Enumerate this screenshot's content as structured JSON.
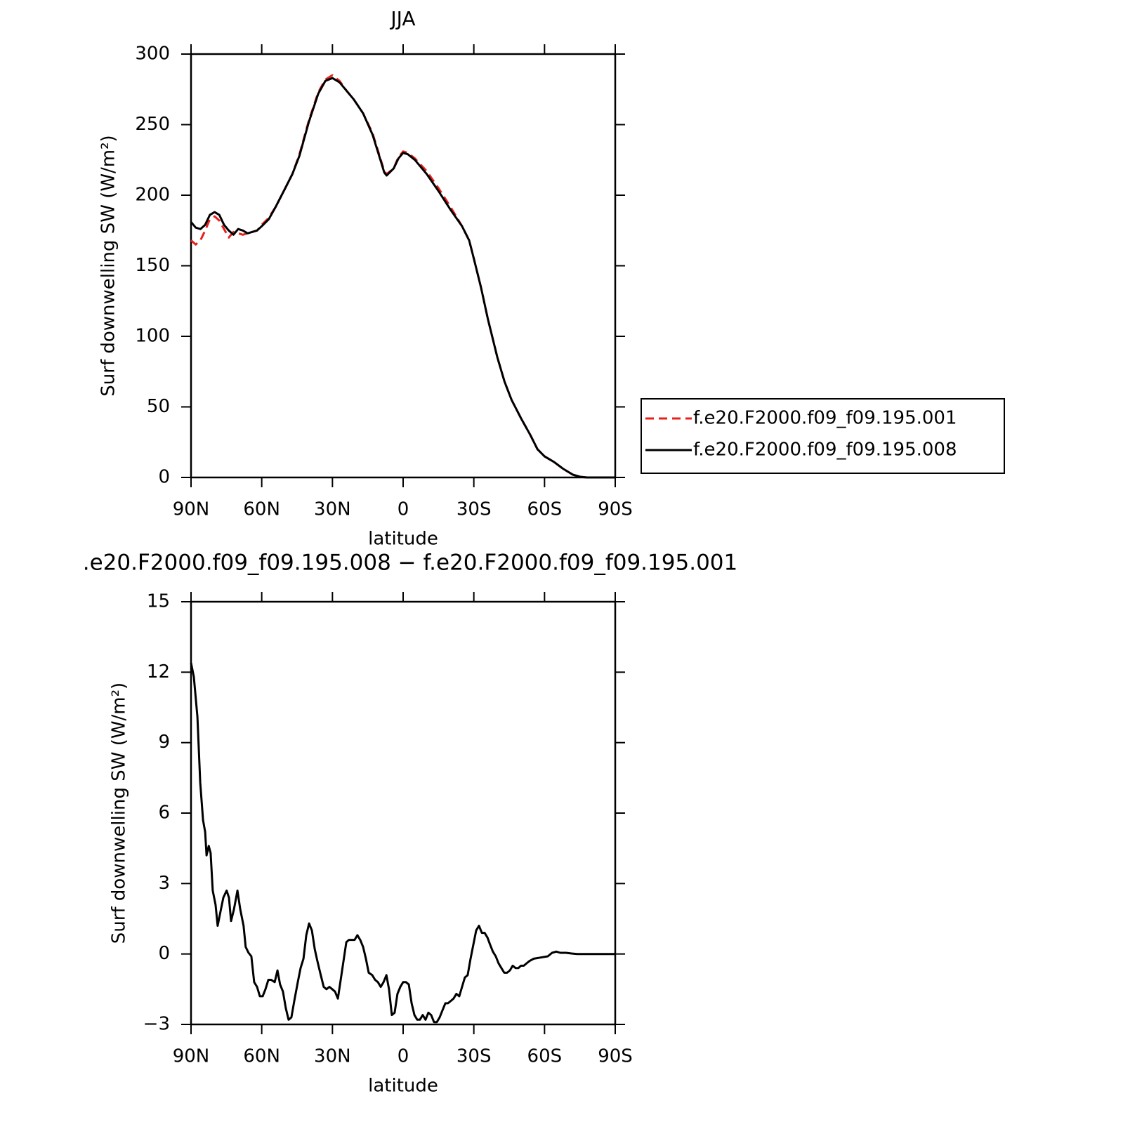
{
  "chart_data": [
    {
      "type": "line",
      "title": "JJA",
      "x_label": "latitude",
      "y_label": "Surf downwelling SW (W/m²)",
      "xlim": [
        90,
        -90
      ],
      "xticks": [
        {
          "value": 90,
          "label": "90N"
        },
        {
          "value": 60,
          "label": "60N"
        },
        {
          "value": 30,
          "label": "30N"
        },
        0,
        {
          "value": -30,
          "label": "30S"
        },
        {
          "value": -60,
          "label": "60S"
        },
        {
          "value": -90,
          "label": "90S"
        }
      ],
      "ylim": [
        0,
        300
      ],
      "yticks": [
        0,
        50,
        100,
        150,
        200,
        250,
        300
      ],
      "legend": "right",
      "x": [
        90,
        88,
        86,
        84,
        82,
        80,
        78,
        76,
        74,
        72,
        70,
        68,
        66,
        64,
        62,
        60,
        57,
        54,
        50,
        47,
        44,
        40,
        36,
        33,
        30,
        27,
        24,
        21,
        17,
        13,
        10,
        8,
        7,
        4,
        2,
        0,
        -2,
        -5,
        -10,
        -15,
        -20,
        -25,
        -28,
        -30,
        -33,
        -36,
        -40,
        -43,
        -46,
        -50,
        -54,
        -57,
        -60,
        -64,
        -68,
        -72,
        -75,
        -78,
        -82,
        -86,
        -90
      ],
      "series": [
        {
          "name": "f.e20.F2000.f09_f09.195.001",
          "color": "#e8201c",
          "style": "dashed",
          "values": [
            168,
            165,
            168,
            175,
            183,
            185,
            182,
            176,
            170,
            174,
            173,
            172,
            173,
            174,
            175,
            179,
            184,
            192,
            205,
            215,
            229,
            253,
            273,
            282,
            285,
            281,
            274,
            268,
            258,
            244,
            228,
            217,
            215,
            219,
            227,
            231,
            230,
            226,
            217,
            205,
            192,
            178,
            168,
            155,
            135,
            112,
            85,
            68,
            55,
            42,
            30,
            20,
            15,
            11,
            6,
            2,
            0.5,
            0,
            0,
            0,
            0
          ]
        },
        {
          "name": "f.e20.F2000.f09_f09.195.008",
          "color": "#000000",
          "style": "solid",
          "values": [
            181,
            177,
            176,
            179,
            186,
            188,
            186,
            179,
            175,
            172,
            176,
            175,
            173,
            174,
            175,
            178,
            183,
            192,
            205,
            215,
            228,
            252,
            272,
            281,
            283,
            280,
            274,
            268,
            258,
            243,
            227,
            216,
            214,
            219,
            226,
            230,
            229,
            225,
            215,
            203,
            190,
            178,
            168,
            155,
            135,
            112,
            85,
            68,
            55,
            42,
            30,
            20,
            15,
            11,
            6,
            2,
            0.5,
            0,
            0,
            0,
            0
          ]
        }
      ]
    },
    {
      "type": "line",
      "title": ".e20.F2000.f09_f09.195.008 − f.e20.F2000.f09_f09.195.001",
      "x_label": "latitude",
      "y_label": "Surf downwelling SW (W/m²)",
      "xlim": [
        90,
        -90
      ],
      "xticks": [
        {
          "value": 90,
          "label": "90N"
        },
        {
          "value": 60,
          "label": "60N"
        },
        {
          "value": 30,
          "label": "30N"
        },
        0,
        {
          "value": -30,
          "label": "30S"
        },
        {
          "value": -60,
          "label": "60S"
        },
        {
          "value": -90,
          "label": "90S"
        }
      ],
      "ylim": [
        -3,
        15
      ],
      "yticks": [
        {
          "value": -3,
          "label": "−3"
        },
        0,
        3,
        6,
        9,
        12,
        15
      ],
      "x": [
        90,
        88.8,
        87.3,
        86.1,
        84.9,
        84,
        83.4,
        82.5,
        81.7,
        80.8,
        79.6,
        78.7,
        77.5,
        76.3,
        74.9,
        73.9,
        73,
        71.8,
        70.3,
        69.1,
        67.7,
        66.8,
        65.6,
        64.4,
        63.2,
        62,
        60.8,
        59.6,
        58.4,
        57.2,
        56,
        54.5,
        53.3,
        52.2,
        51,
        49.8,
        48.6,
        47.4,
        46.2,
        44.7,
        43.5,
        42.3,
        41.1,
        39.9,
        38.7,
        37.5,
        36.4,
        35.2,
        33.7,
        32.5,
        31.3,
        30.1,
        28.9,
        27.7,
        26.5,
        25.3,
        24.1,
        23,
        21.8,
        20.6,
        19.4,
        18.2,
        17,
        15.8,
        14.6,
        13.1,
        11.9,
        10.7,
        9.5,
        8.3,
        7.1,
        6,
        4.8,
        3.6,
        2.4,
        1.2,
        0,
        -1.2,
        -2.4,
        -3.6,
        -4.8,
        -6,
        -7.1,
        -8.3,
        -9.5,
        -10.7,
        -11.9,
        -13.1,
        -14.3,
        -15.5,
        -16.7,
        -17.9,
        -19,
        -20.2,
        -21.4,
        -22.6,
        -23.8,
        -25,
        -26.2,
        -27.4,
        -28.6,
        -29.8,
        -31,
        -32.2,
        -33.4,
        -34.6,
        -35.8,
        -36.9,
        -38.1,
        -39.3,
        -40.5,
        -41.7,
        -42.9,
        -44.1,
        -45.3,
        -46.5,
        -47.7,
        -48.9,
        -50,
        -51.2,
        -52.4,
        -53.6,
        -55.4,
        -58.4,
        -61.4,
        -63.2,
        -65,
        -66.7,
        -69.1,
        -71.5,
        -73.9,
        -90
      ],
      "series": [
        {
          "color": "#000000",
          "style": "solid",
          "values": [
            12.4,
            11.8,
            10.1,
            7.3,
            5.7,
            5.2,
            4.2,
            4.6,
            4.3,
            2.7,
            2.1,
            1.2,
            1.8,
            2.4,
            2.7,
            2.4,
            1.4,
            1.9,
            2.7,
            1.9,
            1.2,
            0.3,
            0.05,
            -0.1,
            -1.2,
            -1.4,
            -1.8,
            -1.8,
            -1.5,
            -1.1,
            -1.1,
            -1.2,
            -0.7,
            -1.3,
            -1.6,
            -2.3,
            -2.8,
            -2.7,
            -2,
            -1.2,
            -0.6,
            -0.2,
            0.8,
            1.3,
            1,
            0.2,
            -0.3,
            -0.8,
            -1.4,
            -1.5,
            -1.4,
            -1.5,
            -1.6,
            -1.9,
            -1.1,
            -0.3,
            0.5,
            0.6,
            0.6,
            0.6,
            0.8,
            0.6,
            0.3,
            -0.2,
            -0.8,
            -0.9,
            -1.1,
            -1.2,
            -1.4,
            -1.2,
            -0.9,
            -1.5,
            -2.6,
            -2.5,
            -1.7,
            -1.4,
            -1.2,
            -1.2,
            -1.3,
            -2.1,
            -2.6,
            -2.8,
            -2.8,
            -2.6,
            -2.8,
            -2.5,
            -2.6,
            -2.9,
            -2.9,
            -2.7,
            -2.4,
            -2.1,
            -2.1,
            -2,
            -1.9,
            -1.7,
            -1.8,
            -1.4,
            -1,
            -0.9,
            -0.2,
            0.4,
            1,
            1.2,
            0.9,
            0.9,
            0.7,
            0.4,
            0.1,
            -0.1,
            -0.4,
            -0.6,
            -0.8,
            -0.8,
            -0.7,
            -0.5,
            -0.6,
            -0.6,
            -0.5,
            -0.5,
            -0.4,
            -0.3,
            -0.2,
            -0.15,
            -0.1,
            0.05,
            0.1,
            0.05,
            0.05,
            0.02,
            0,
            0
          ]
        }
      ]
    }
  ]
}
